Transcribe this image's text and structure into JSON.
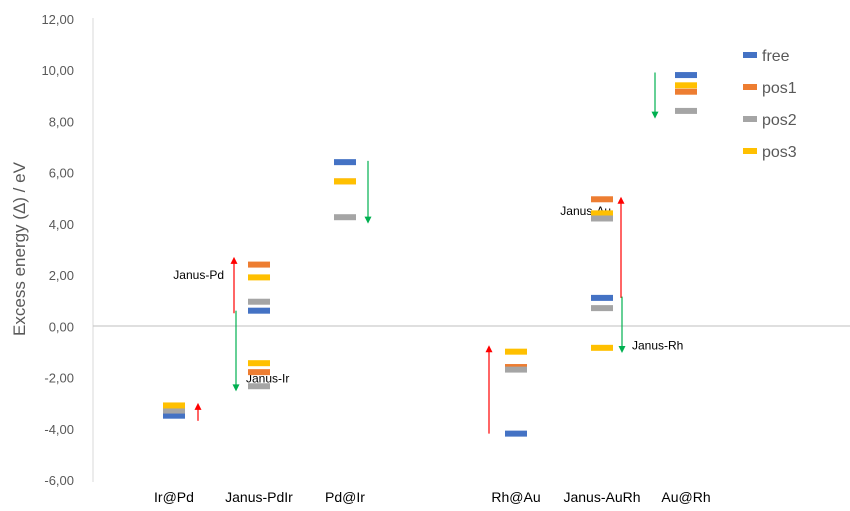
{
  "chart_data": {
    "type": "scatter",
    "ylabel": "Excess energy (Δ) / eV",
    "ylim": [
      -6,
      12
    ],
    "yticks": [
      "-6,00",
      "-4,00",
      "-2,00",
      "0,00",
      "2,00",
      "4,00",
      "6,00",
      "8,00",
      "10,00",
      "12,00"
    ],
    "ytick_values": [
      -6,
      -4,
      -2,
      0,
      2,
      4,
      6,
      8,
      10,
      12
    ],
    "grid": false,
    "legend_position": "top-right",
    "categories": [
      "Ir@Pd",
      "Janus-PdIr",
      "Pd@Ir",
      "Rh@Au",
      "Janus-AuRh",
      "Au@Rh"
    ],
    "series": [
      {
        "name": "free",
        "color": "#4472C4",
        "values": [
          -3.45,
          0.65,
          6.45,
          -4.15,
          1.15,
          9.85
        ]
      },
      {
        "name": "pos1",
        "color": "#ED7D31",
        "values": [
          -3.2,
          -1.75,
          5.7,
          -1.55,
          5.0,
          9.2
        ]
      },
      {
        "name": "pos2",
        "color": "#A5A5A5",
        "values": [
          -3.25,
          -2.3,
          4.3,
          -1.65,
          0.75,
          8.45
        ]
      },
      {
        "name": "pos3",
        "color": "#FFC000",
        "values": [
          -3.05,
          -1.4,
          5.7,
          -0.95,
          4.45,
          9.45
        ]
      },
      {
        "name": "",
        "color": "#A5A5A5",
        "values": [
          null,
          1.0,
          null,
          null,
          4.25,
          null
        ]
      },
      {
        "name": "",
        "color": "#ED7D31",
        "values": [
          null,
          2.45,
          null,
          null,
          null,
          null
        ]
      },
      {
        "name": "",
        "color": "#FFC000",
        "values": [
          null,
          1.95,
          null,
          null,
          -0.8,
          null
        ]
      }
    ],
    "arrows": [
      {
        "category": "Ir@Pd",
        "from": -3.65,
        "to": -2.95,
        "color": "#FF0000",
        "label": ""
      },
      {
        "category": "Janus-PdIr",
        "from": 0.55,
        "to": 2.75,
        "color": "#FF0000",
        "label": "Janus-Pd"
      },
      {
        "category": "Janus-PdIr",
        "from": 0.65,
        "to": -2.5,
        "color": "#00B050",
        "label": "Janus-Ir"
      },
      {
        "category": "Pd@Ir",
        "from": 6.5,
        "to": 4.05,
        "color": "#00B050",
        "label": ""
      },
      {
        "category": "Rh@Au",
        "from": -4.15,
        "to": -0.7,
        "color": "#FF0000",
        "label": ""
      },
      {
        "category": "Janus-AuRh",
        "from": 1.15,
        "to": 5.1,
        "color": "#FF0000",
        "label": "Janus-Au"
      },
      {
        "category": "Janus-AuRh",
        "from": 1.2,
        "to": -1.0,
        "color": "#00B050",
        "label": "Janus-Rh"
      },
      {
        "category": "Au@Rh",
        "from": 9.95,
        "to": 8.15,
        "color": "#00B050",
        "label": ""
      }
    ]
  }
}
